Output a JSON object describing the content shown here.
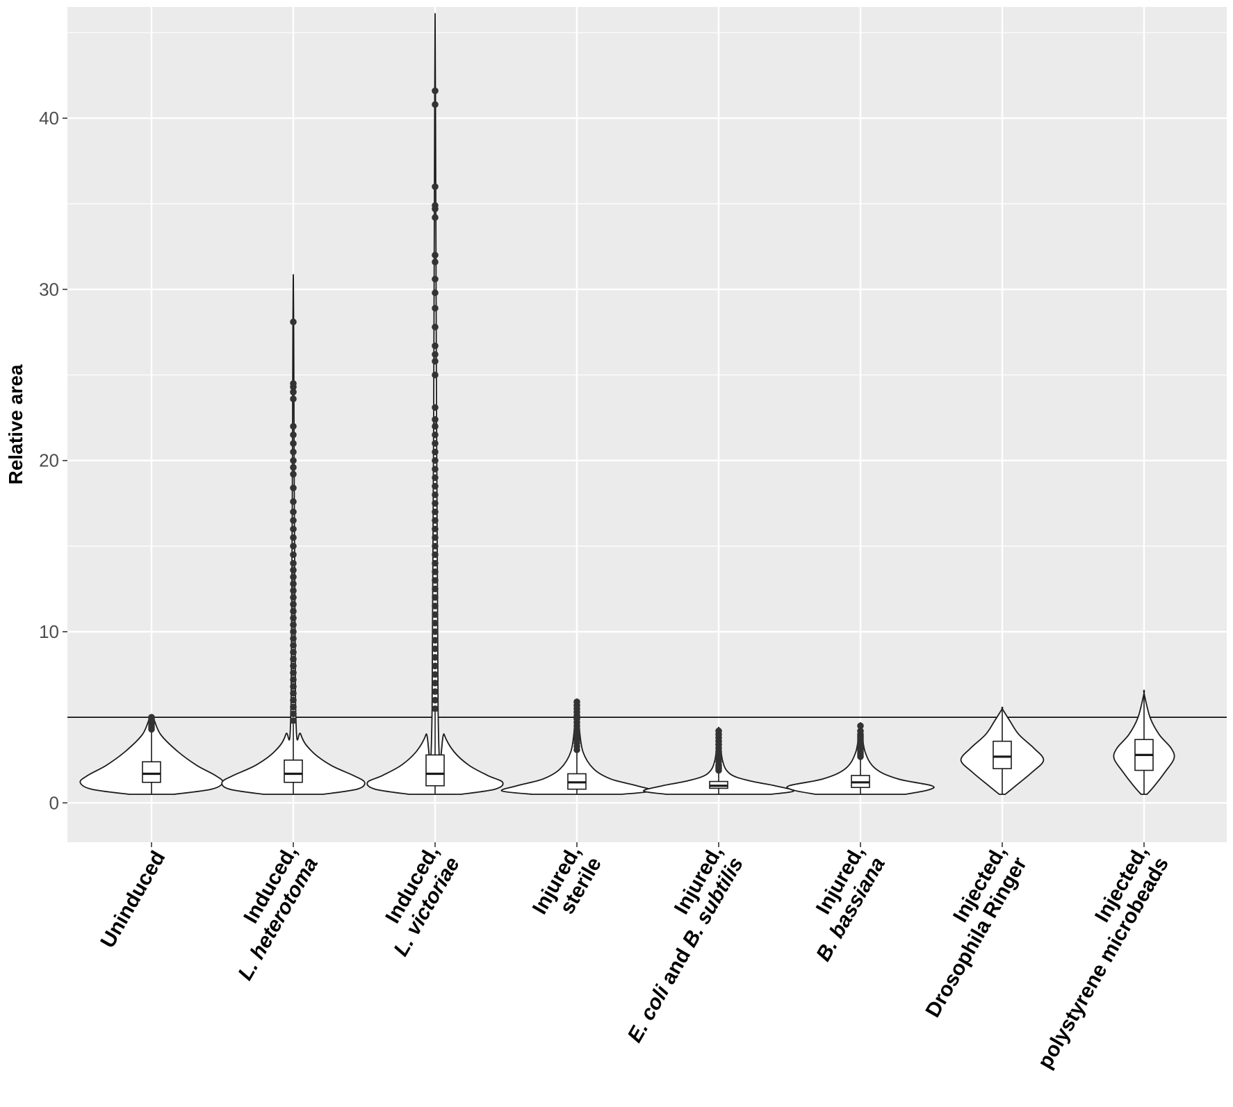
{
  "chart_data": {
    "type": "violin",
    "title": "",
    "xlabel": "",
    "ylabel": "Relative area",
    "ylim": [
      -2.3,
      46.5
    ],
    "yticks": [
      0,
      10,
      20,
      30,
      40
    ],
    "grid": true,
    "threshold_line": 5,
    "colors": {
      "panel": "#ebebeb",
      "grid": "#ffffff",
      "violin_fill": "#ffffff",
      "stroke": "#1a1a1a",
      "point": "#333333"
    },
    "categories": [
      {
        "line1": "",
        "line1_italic": false,
        "line2": "Uninduced",
        "line2_parts": [
          {
            "text": "Uninduced",
            "italic": false
          }
        ]
      },
      {
        "line1": "Induced,",
        "line1_italic": false,
        "line2": "L. heterotoma",
        "line2_parts": [
          {
            "text": "L. heterotoma",
            "italic": true
          }
        ]
      },
      {
        "line1": "Induced,",
        "line1_italic": false,
        "line2": "L. victoriae",
        "line2_parts": [
          {
            "text": "L. victoriae",
            "italic": true
          }
        ]
      },
      {
        "line1": "Injured,",
        "line1_italic": false,
        "line2": "sterile",
        "line2_parts": [
          {
            "text": "sterile",
            "italic": false
          }
        ]
      },
      {
        "line1": "Injured,",
        "line1_italic": false,
        "line2": "E. coli and B. subtilis",
        "line2_parts": [
          {
            "text": "E. coli",
            "italic": true
          },
          {
            "text": " and ",
            "italic": false
          },
          {
            "text": "B. subtilis",
            "italic": true
          }
        ]
      },
      {
        "line1": "Injured,",
        "line1_italic": false,
        "line2": "B. bassiana",
        "line2_parts": [
          {
            "text": "B. bassiana",
            "italic": true
          }
        ]
      },
      {
        "line1": "Injected,",
        "line1_italic": false,
        "line2": "Drosophila Ringer",
        "line2_parts": [
          {
            "text": "Drosophila Ringer",
            "italic": false
          }
        ]
      },
      {
        "line1": "Injected,",
        "line1_italic": false,
        "line2": "polystyrene microbeads",
        "line2_parts": [
          {
            "text": "polystyrene microbeads",
            "italic": false
          }
        ]
      }
    ],
    "series": [
      {
        "box": {
          "q1": 1.2,
          "median": 1.7,
          "q3": 2.4,
          "whisker_low": 0.5,
          "whisker_high": 4.2
        },
        "violin": [
          [
            0.5,
            0.3
          ],
          [
            0.8,
            0.8
          ],
          [
            1.2,
            0.95
          ],
          [
            1.6,
            0.85
          ],
          [
            2.2,
            0.6
          ],
          [
            3.0,
            0.35
          ],
          [
            4.0,
            0.12
          ],
          [
            5.0,
            0.02
          ]
        ],
        "outliers": [
          4.3,
          4.4,
          4.5,
          4.6,
          4.7,
          4.8,
          4.9,
          5.0
        ]
      },
      {
        "box": {
          "q1": 1.2,
          "median": 1.7,
          "q3": 2.5,
          "whisker_low": 0.5,
          "whisker_high": 4.6
        },
        "violin": [
          [
            0.5,
            0.4
          ],
          [
            0.8,
            0.85
          ],
          [
            1.2,
            0.95
          ],
          [
            1.6,
            0.8
          ],
          [
            2.2,
            0.5
          ],
          [
            3.0,
            0.25
          ],
          [
            4.0,
            0.1
          ],
          [
            6.0,
            0.03
          ],
          [
            28.1,
            0.005
          ]
        ],
        "outliers": [
          4.8,
          5.2,
          5.6,
          6.0,
          6.4,
          6.8,
          7.2,
          7.6,
          8.0,
          8.4,
          8.8,
          9.2,
          9.6,
          10.0,
          10.4,
          10.8,
          11.2,
          11.6,
          12.0,
          12.4,
          12.8,
          13.2,
          13.6,
          14.0,
          14.5,
          15.0,
          15.5,
          16.0,
          16.5,
          17.0,
          17.6,
          18.4,
          19.2,
          19.6,
          20.0,
          20.5,
          21.0,
          21.5,
          22.0,
          23.6,
          24.0,
          24.3,
          24.5,
          28.1
        ]
      },
      {
        "box": {
          "q1": 1.0,
          "median": 1.7,
          "q3": 2.8,
          "whisker_low": 0.5,
          "whisker_high": 5.3
        },
        "violin": [
          [
            0.5,
            0.35
          ],
          [
            0.8,
            0.8
          ],
          [
            1.2,
            0.9
          ],
          [
            1.6,
            0.7
          ],
          [
            2.2,
            0.45
          ],
          [
            3.0,
            0.25
          ],
          [
            4.0,
            0.12
          ],
          [
            5.5,
            0.04
          ],
          [
            41.6,
            0.005
          ]
        ],
        "outliers": [
          5.5,
          6.0,
          6.5,
          7.0,
          7.5,
          8.0,
          8.5,
          9.0,
          9.5,
          10.0,
          10.5,
          11.0,
          11.5,
          12.0,
          12.5,
          13.0,
          13.5,
          14.0,
          14.5,
          15.0,
          15.5,
          16.0,
          16.5,
          17.0,
          17.5,
          18.0,
          18.5,
          19.0,
          19.5,
          20.0,
          20.5,
          21.0,
          21.5,
          22.0,
          22.4,
          23.1,
          25.0,
          25.8,
          26.2,
          26.7,
          27.8,
          28.9,
          29.8,
          30.6,
          31.6,
          32.0,
          34.2,
          34.7,
          34.9,
          36.0,
          40.8,
          41.6
        ]
      },
      {
        "box": {
          "q1": 0.8,
          "median": 1.2,
          "q3": 1.7,
          "whisker_low": 0.5,
          "whisker_high": 3.0
        },
        "violin": [
          [
            0.5,
            0.6
          ],
          [
            0.7,
            1.0
          ],
          [
            1.0,
            0.8
          ],
          [
            1.4,
            0.45
          ],
          [
            2.0,
            0.22
          ],
          [
            3.0,
            0.08
          ],
          [
            4.5,
            0.03
          ],
          [
            5.9,
            0.01
          ]
        ],
        "outliers": [
          3.1,
          3.3,
          3.5,
          3.7,
          3.9,
          4.1,
          4.3,
          4.5,
          4.7,
          4.9,
          5.1,
          5.3,
          5.5,
          5.7,
          5.9
        ]
      },
      {
        "box": {
          "q1": 0.85,
          "median": 1.0,
          "q3": 1.25,
          "whisker_low": 0.5,
          "whisker_high": 1.8
        },
        "violin": [
          [
            0.5,
            0.7
          ],
          [
            0.7,
            1.0
          ],
          [
            1.0,
            0.75
          ],
          [
            1.3,
            0.4
          ],
          [
            1.7,
            0.15
          ],
          [
            2.5,
            0.05
          ],
          [
            4.2,
            0.01
          ]
        ],
        "outliers": [
          1.9,
          2.0,
          2.1,
          2.2,
          2.4,
          2.6,
          2.8,
          3.0,
          3.2,
          3.4,
          3.6,
          3.8,
          4.0,
          4.2
        ]
      },
      {
        "box": {
          "q1": 0.9,
          "median": 1.2,
          "q3": 1.6,
          "whisker_low": 0.5,
          "whisker_high": 2.6
        },
        "violin": [
          [
            0.5,
            0.6
          ],
          [
            0.75,
            0.9
          ],
          [
            1.0,
            0.95
          ],
          [
            1.4,
            0.5
          ],
          [
            2.0,
            0.2
          ],
          [
            3.0,
            0.06
          ],
          [
            4.5,
            0.01
          ]
        ],
        "outliers": [
          2.7,
          2.8,
          2.9,
          3.0,
          3.1,
          3.2,
          3.3,
          3.4,
          3.5,
          3.6,
          3.7,
          3.8,
          3.9,
          4.0,
          4.2,
          4.5
        ]
      },
      {
        "box": {
          "q1": 2.0,
          "median": 2.7,
          "q3": 3.6,
          "whisker_low": 0.5,
          "whisker_high": 5.4
        },
        "violin": [
          [
            0.5,
            0.04
          ],
          [
            1.0,
            0.18
          ],
          [
            1.8,
            0.4
          ],
          [
            2.5,
            0.55
          ],
          [
            3.2,
            0.42
          ],
          [
            4.0,
            0.22
          ],
          [
            4.8,
            0.1
          ],
          [
            5.5,
            0.0
          ]
        ],
        "outliers": []
      },
      {
        "box": {
          "q1": 1.9,
          "median": 2.8,
          "q3": 3.7,
          "whisker_low": 0.5,
          "whisker_high": 6.3
        },
        "violin": [
          [
            0.5,
            0.04
          ],
          [
            1.0,
            0.14
          ],
          [
            1.8,
            0.28
          ],
          [
            2.6,
            0.4
          ],
          [
            3.2,
            0.36
          ],
          [
            4.0,
            0.2
          ],
          [
            5.0,
            0.08
          ],
          [
            6.4,
            0.0
          ]
        ],
        "outliers": []
      }
    ]
  }
}
